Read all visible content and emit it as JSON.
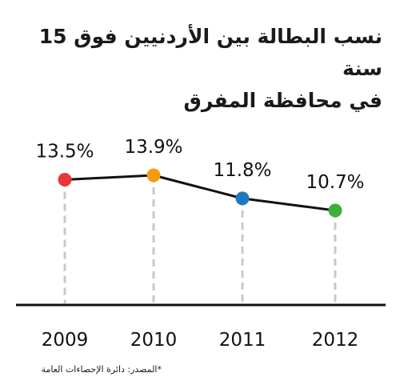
{
  "title_lines": [
    "نسب البطالة بين الأردنيين فوق 15 سنة",
    "في محافظة المفرق"
  ],
  "source": "*المصدر: دائرة الإحصاءات العامة",
  "chart_data": {
    "type": "line",
    "x": [
      "2009",
      "2010",
      "2011",
      "2012"
    ],
    "values": [
      13.5,
      13.9,
      11.8,
      10.7
    ],
    "value_labels": [
      "13.5%",
      "13.9%",
      "11.8%",
      "10.7%"
    ],
    "ylim": [
      0,
      16
    ],
    "grid": false,
    "point_colors": [
      "#e8383b",
      "#f59a0c",
      "#1d78c1",
      "#3fae3a"
    ],
    "line_color": "#111111",
    "drop_line_color": "#c8c8c8"
  }
}
